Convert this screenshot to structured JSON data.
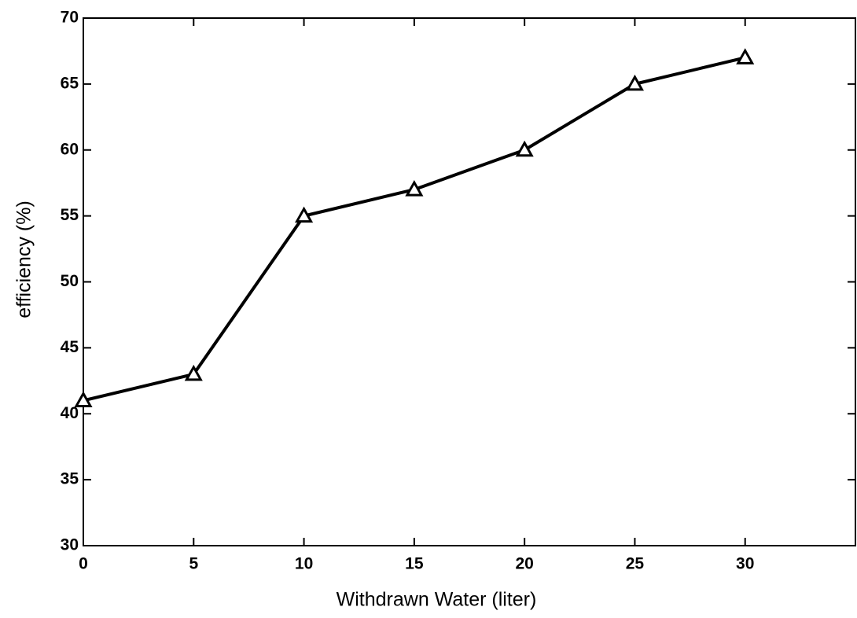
{
  "chart_data": {
    "type": "line",
    "x_label": "Withdrawn Water (liter)",
    "y_label": "efficiency   (%)",
    "x": [
      0,
      5,
      10,
      15,
      20,
      25,
      30
    ],
    "series": [
      {
        "name": "efficiency",
        "color": "#000000",
        "values": [
          41,
          43,
          55,
          57,
          60,
          65,
          67
        ]
      }
    ],
    "xlim": [
      0,
      35
    ],
    "xticks": [
      0,
      5,
      10,
      15,
      20,
      25,
      30
    ],
    "ylim": [
      30,
      70
    ],
    "yticks": [
      30,
      35,
      40,
      45,
      50,
      55,
      60,
      65,
      70
    ],
    "marker": "triangle",
    "grid": false
  }
}
